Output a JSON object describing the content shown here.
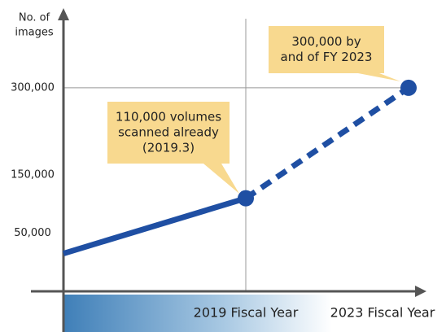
{
  "chart_data": {
    "type": "line",
    "ylabel_lines": [
      "No. of",
      "images"
    ],
    "categories": [
      null,
      "2019 Fiscal Year",
      "2023 Fiscal Year"
    ],
    "series": [
      {
        "color": "#1f4fa3",
        "values": [
          15000,
          110000,
          null
        ]
      },
      {
        "color": "#1f4fa3",
        "dashed": true,
        "values": [
          null,
          110000,
          300000
        ]
      }
    ],
    "ylim": [
      -50000,
      430000
    ],
    "yticks": [
      {
        "value": 50000,
        "label": "50,000"
      },
      {
        "value": 150000,
        "label": "150,000"
      },
      {
        "value": 300000,
        "label": "300,000"
      }
    ],
    "annotations": [
      {
        "lines": [
          "110,000 volumes",
          "scanned already",
          "(2019.3)"
        ]
      },
      {
        "lines": [
          "300,000 by",
          "and of FY 2023"
        ]
      }
    ]
  }
}
